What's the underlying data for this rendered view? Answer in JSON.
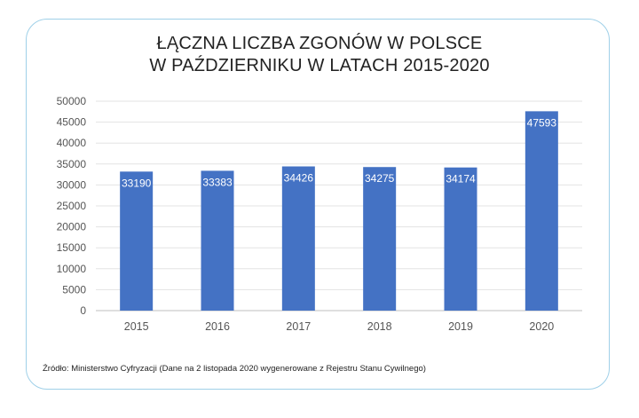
{
  "chart_data": {
    "type": "bar",
    "title_lines": [
      "ŁĄCZNA LICZBA ZGONÓW W POLSCE",
      "W PAŹDZIERNIKU W LATACH 2015-2020"
    ],
    "categories": [
      "2015",
      "2016",
      "2017",
      "2018",
      "2019",
      "2020"
    ],
    "values": [
      33190,
      33383,
      34426,
      34275,
      34174,
      47593
    ],
    "data_labels": [
      "33190",
      "33383",
      "34426",
      "34275",
      "34174",
      "47593"
    ],
    "y_ticks": [
      "0",
      "5000",
      "10000",
      "15000",
      "20000",
      "25000",
      "30000",
      "35000",
      "40000",
      "45000",
      "50000"
    ],
    "ylim": [
      0,
      50000
    ],
    "xlabel": "",
    "ylabel": "",
    "grid": true,
    "bar_color": "#4472c4",
    "grid_color": "#e3e3e3"
  },
  "source_note": "Źródło: Ministerstwo Cyfryzacji (Dane na 2 listopada 2020 wygenerowane z Rejestru Stanu Cywilnego)"
}
